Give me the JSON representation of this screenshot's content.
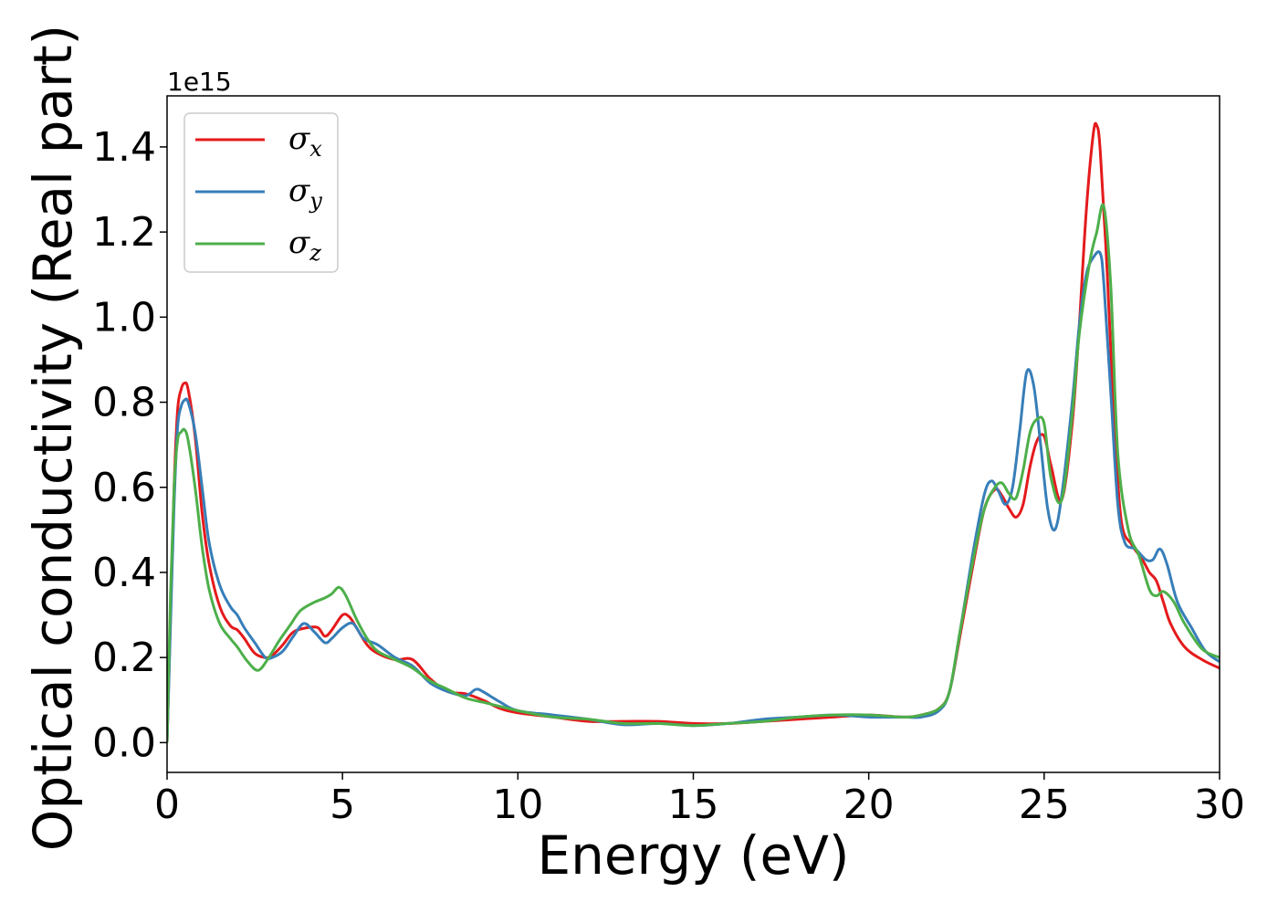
{
  "chart_data": {
    "type": "line",
    "title": "",
    "xlabel": "Energy (eV)",
    "ylabel": "Optical conductivity (Real part)",
    "y_offset_label": "1e15",
    "xlim": [
      0,
      30
    ],
    "ylim": [
      -0.07,
      1.52
    ],
    "xticks": [
      0,
      5,
      10,
      15,
      20,
      25,
      30
    ],
    "xtick_labels": [
      "0",
      "5",
      "10",
      "15",
      "20",
      "25",
      "30"
    ],
    "yticks": [
      0.0,
      0.2,
      0.4,
      0.6,
      0.8,
      1.0,
      1.2,
      1.4
    ],
    "ytick_labels": [
      "0.0",
      "0.2",
      "0.4",
      "0.6",
      "0.8",
      "1.0",
      "1.2",
      "1.4"
    ],
    "grid": false,
    "legend_position": "top-left",
    "series": [
      {
        "name": "σx",
        "symbol": "σ",
        "subscript": "x",
        "color": "#e41a1c",
        "x": [
          0,
          0.1,
          0.2,
          0.3,
          0.4,
          0.5,
          0.6,
          0.8,
          1.0,
          1.2,
          1.5,
          1.8,
          2.0,
          2.2,
          2.5,
          2.8,
          3.0,
          3.3,
          3.6,
          4.0,
          4.3,
          4.5,
          4.7,
          5.0,
          5.2,
          5.4,
          5.7,
          6.0,
          6.5,
          7.0,
          7.5,
          8.0,
          8.5,
          9.0,
          9.5,
          10.0,
          11.0,
          12.0,
          13.0,
          14.0,
          15.0,
          16.0,
          17.0,
          18.0,
          19.0,
          20.0,
          21.0,
          21.5,
          22.0,
          22.3,
          22.6,
          23.0,
          23.3,
          23.6,
          23.8,
          24.0,
          24.2,
          24.4,
          24.6,
          24.8,
          25.0,
          25.2,
          25.5,
          25.8,
          26.0,
          26.2,
          26.4,
          26.5,
          26.6,
          26.8,
          27.0,
          27.2,
          27.5,
          27.8,
          28.0,
          28.2,
          28.4,
          28.6,
          29.0,
          29.5,
          30.0
        ],
        "y": [
          0.0,
          0.3,
          0.6,
          0.78,
          0.83,
          0.845,
          0.83,
          0.72,
          0.54,
          0.42,
          0.32,
          0.275,
          0.265,
          0.245,
          0.21,
          0.2,
          0.205,
          0.23,
          0.26,
          0.27,
          0.27,
          0.25,
          0.265,
          0.3,
          0.295,
          0.27,
          0.23,
          0.21,
          0.195,
          0.195,
          0.15,
          0.12,
          0.115,
          0.1,
          0.08,
          0.07,
          0.06,
          0.05,
          0.05,
          0.05,
          0.045,
          0.045,
          0.05,
          0.055,
          0.06,
          0.065,
          0.06,
          0.065,
          0.08,
          0.12,
          0.25,
          0.43,
          0.55,
          0.595,
          0.58,
          0.55,
          0.53,
          0.56,
          0.65,
          0.71,
          0.72,
          0.65,
          0.57,
          0.75,
          0.98,
          1.25,
          1.43,
          1.45,
          1.39,
          1.1,
          0.75,
          0.52,
          0.465,
          0.43,
          0.4,
          0.38,
          0.33,
          0.28,
          0.225,
          0.195,
          0.175
        ]
      },
      {
        "name": "σy",
        "symbol": "σ",
        "subscript": "y",
        "color": "#377eb8",
        "x": [
          0,
          0.1,
          0.2,
          0.3,
          0.4,
          0.5,
          0.6,
          0.8,
          1.0,
          1.2,
          1.5,
          1.8,
          2.0,
          2.2,
          2.5,
          2.8,
          3.0,
          3.3,
          3.6,
          3.9,
          4.2,
          4.5,
          4.7,
          5.0,
          5.3,
          5.6,
          6.0,
          6.5,
          7.0,
          7.5,
          8.0,
          8.5,
          8.8,
          9.0,
          9.5,
          10.0,
          11.0,
          12.0,
          13.0,
          14.0,
          15.0,
          16.0,
          17.0,
          18.0,
          19.0,
          20.0,
          21.0,
          21.5,
          22.0,
          22.3,
          22.6,
          23.0,
          23.3,
          23.5,
          23.7,
          23.9,
          24.1,
          24.3,
          24.5,
          24.7,
          24.9,
          25.1,
          25.3,
          25.5,
          25.8,
          26.0,
          26.2,
          26.4,
          26.6,
          26.7,
          26.9,
          27.1,
          27.3,
          27.6,
          27.9,
          28.1,
          28.3,
          28.5,
          28.8,
          29.2,
          29.6,
          30.0
        ],
        "y": [
          0.0,
          0.28,
          0.56,
          0.74,
          0.79,
          0.805,
          0.8,
          0.73,
          0.6,
          0.47,
          0.37,
          0.32,
          0.3,
          0.27,
          0.235,
          0.2,
          0.2,
          0.215,
          0.25,
          0.28,
          0.26,
          0.235,
          0.245,
          0.27,
          0.28,
          0.245,
          0.23,
          0.2,
          0.18,
          0.14,
          0.12,
          0.11,
          0.125,
          0.12,
          0.095,
          0.075,
          0.065,
          0.055,
          0.042,
          0.045,
          0.04,
          0.045,
          0.055,
          0.06,
          0.065,
          0.06,
          0.06,
          0.06,
          0.075,
          0.12,
          0.26,
          0.46,
          0.585,
          0.615,
          0.59,
          0.56,
          0.6,
          0.73,
          0.87,
          0.84,
          0.7,
          0.55,
          0.5,
          0.58,
          0.8,
          0.98,
          1.1,
          1.14,
          1.15,
          1.08,
          0.82,
          0.56,
          0.47,
          0.455,
          0.43,
          0.43,
          0.455,
          0.42,
          0.33,
          0.27,
          0.215,
          0.19
        ]
      },
      {
        "name": "σz",
        "symbol": "σ",
        "subscript": "z",
        "color": "#4daf4a",
        "x": [
          0,
          0.1,
          0.2,
          0.3,
          0.4,
          0.5,
          0.6,
          0.8,
          1.0,
          1.2,
          1.5,
          1.8,
          2.0,
          2.3,
          2.6,
          2.9,
          3.2,
          3.5,
          3.8,
          4.2,
          4.5,
          4.7,
          4.9,
          5.1,
          5.4,
          5.7,
          6.0,
          6.5,
          7.0,
          7.5,
          8.0,
          8.5,
          9.0,
          9.5,
          10.0,
          11.0,
          12.0,
          13.0,
          14.0,
          15.0,
          16.0,
          17.0,
          18.0,
          19.0,
          20.0,
          21.0,
          21.5,
          22.0,
          22.3,
          22.6,
          23.0,
          23.3,
          23.6,
          23.8,
          24.0,
          24.2,
          24.4,
          24.6,
          24.8,
          25.0,
          25.2,
          25.5,
          25.8,
          26.0,
          26.3,
          26.5,
          26.7,
          26.9,
          27.1,
          27.4,
          27.7,
          28.0,
          28.2,
          28.4,
          28.7,
          29.0,
          29.5,
          30.0
        ],
        "y": [
          0.0,
          0.35,
          0.6,
          0.71,
          0.73,
          0.735,
          0.71,
          0.6,
          0.46,
          0.36,
          0.28,
          0.245,
          0.225,
          0.19,
          0.17,
          0.2,
          0.24,
          0.275,
          0.31,
          0.33,
          0.34,
          0.35,
          0.365,
          0.345,
          0.29,
          0.245,
          0.215,
          0.195,
          0.175,
          0.145,
          0.125,
          0.105,
          0.095,
          0.085,
          0.075,
          0.06,
          0.055,
          0.045,
          0.045,
          0.04,
          0.045,
          0.05,
          0.06,
          0.065,
          0.065,
          0.06,
          0.065,
          0.08,
          0.12,
          0.26,
          0.44,
          0.55,
          0.6,
          0.61,
          0.585,
          0.575,
          0.64,
          0.73,
          0.76,
          0.75,
          0.62,
          0.57,
          0.77,
          0.96,
          1.13,
          1.2,
          1.26,
          1.07,
          0.68,
          0.5,
          0.44,
          0.36,
          0.345,
          0.355,
          0.33,
          0.28,
          0.22,
          0.2
        ]
      }
    ]
  }
}
